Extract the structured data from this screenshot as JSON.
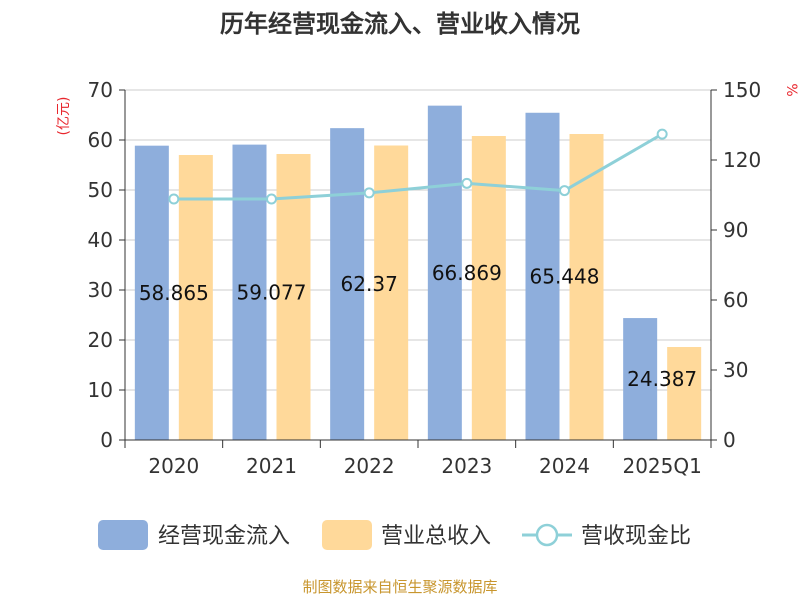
{
  "chart_data": {
    "type": "bar",
    "title": "历年经营现金流入、营业收入情况",
    "categories": [
      "2020",
      "2021",
      "2022",
      "2023",
      "2024",
      "2025Q1"
    ],
    "series": [
      {
        "name": "经营现金流入",
        "type": "bar",
        "axis": "left",
        "values": [
          58.865,
          59.077,
          62.37,
          66.869,
          65.448,
          24.387
        ],
        "data_labels": [
          "58.865",
          "59.077",
          "62.37",
          "66.869",
          "65.448",
          "24.387"
        ],
        "color": "#8eaedc"
      },
      {
        "name": "营业总收入",
        "type": "bar",
        "axis": "left",
        "values": [
          57.0,
          57.2,
          58.9,
          60.8,
          61.2,
          18.6
        ],
        "color": "#ffd99a"
      },
      {
        "name": "营收现金比",
        "type": "line",
        "axis": "right",
        "values": [
          103.3,
          103.3,
          105.9,
          110.0,
          106.9,
          131.1
        ],
        "color": "#8ed0d8"
      }
    ],
    "y_left": {
      "unit": "(亿元)",
      "min": 0,
      "max": 70,
      "ticks": [
        "0",
        "10",
        "20",
        "30",
        "40",
        "50",
        "60",
        "70"
      ]
    },
    "y_right": {
      "unit": "%",
      "min": 0,
      "max": 150,
      "ticks": [
        "0",
        "30",
        "60",
        "90",
        "120",
        "150"
      ]
    },
    "grid": true,
    "legend_position": "bottom"
  },
  "source": "制图数据来自恒生聚源数据库"
}
